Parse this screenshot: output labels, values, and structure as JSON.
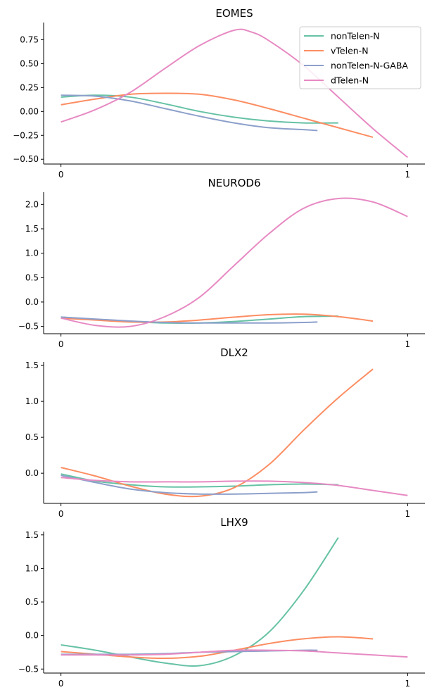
{
  "colors": {
    "nonTelen-N": "#66c2a5",
    "vTelen-N": "#fc8d62",
    "nonTelen-N-GABA": "#8da0cb",
    "dTelen-N": "#e78ac3"
  },
  "legend": {
    "placement": "upper right of first panel",
    "entries": [
      "nonTelen-N",
      "vTelen-N",
      "nonTelen-N-GABA",
      "dTelen-N"
    ]
  },
  "chart_data": [
    {
      "type": "line",
      "title": "EOMES",
      "xlim": [
        -0.05,
        1.05
      ],
      "ylim": [
        -0.55,
        0.93
      ],
      "xticks": [
        0,
        1
      ],
      "xtick_labels": [
        "0",
        "1"
      ],
      "yticks": [
        -0.5,
        -0.25,
        0,
        0.25,
        0.5,
        0.75
      ],
      "ytick_labels": [
        "−0.50",
        "−0.25",
        "0.00",
        "0.25",
        "0.50",
        "0.75"
      ],
      "series": [
        {
          "name": "nonTelen-N",
          "x": [
            0,
            0.1,
            0.2,
            0.3,
            0.4,
            0.5,
            0.6,
            0.7,
            0.8
          ],
          "y": [
            0.15,
            0.17,
            0.15,
            0.08,
            0.0,
            -0.06,
            -0.1,
            -0.12,
            -0.12
          ]
        },
        {
          "name": "vTelen-N",
          "x": [
            0,
            0.1,
            0.2,
            0.3,
            0.4,
            0.5,
            0.6,
            0.7,
            0.8,
            0.9
          ],
          "y": [
            0.07,
            0.13,
            0.18,
            0.19,
            0.18,
            0.12,
            0.03,
            -0.07,
            -0.17,
            -0.27
          ]
        },
        {
          "name": "nonTelen-N-GABA",
          "x": [
            0,
            0.1,
            0.2,
            0.3,
            0.4,
            0.5,
            0.6,
            0.7,
            0.74
          ],
          "y": [
            0.17,
            0.16,
            0.11,
            0.03,
            -0.05,
            -0.12,
            -0.17,
            -0.19,
            -0.2
          ]
        },
        {
          "name": "dTelen-N",
          "x": [
            0,
            0.1,
            0.2,
            0.3,
            0.4,
            0.5,
            0.55,
            0.6,
            0.7,
            0.8,
            0.9,
            1.0
          ],
          "y": [
            -0.11,
            0.02,
            0.2,
            0.45,
            0.69,
            0.85,
            0.83,
            0.74,
            0.48,
            0.15,
            -0.18,
            -0.48
          ]
        }
      ]
    },
    {
      "type": "line",
      "title": "NEUROD6",
      "xlim": [
        -0.05,
        1.05
      ],
      "ylim": [
        -0.65,
        2.25
      ],
      "xticks": [
        0,
        1
      ],
      "xtick_labels": [
        "0",
        "1"
      ],
      "yticks": [
        -0.5,
        0,
        0.5,
        1.0,
        1.5,
        2.0
      ],
      "ytick_labels": [
        "−0.5",
        "0.0",
        "0.5",
        "1.0",
        "1.5",
        "2.0"
      ],
      "series": [
        {
          "name": "nonTelen-N",
          "x": [
            0,
            0.1,
            0.2,
            0.3,
            0.4,
            0.5,
            0.6,
            0.7,
            0.8
          ],
          "y": [
            -0.31,
            -0.36,
            -0.4,
            -0.43,
            -0.43,
            -0.4,
            -0.35,
            -0.3,
            -0.29
          ]
        },
        {
          "name": "vTelen-N",
          "x": [
            0,
            0.1,
            0.2,
            0.3,
            0.4,
            0.5,
            0.6,
            0.7,
            0.8,
            0.9
          ],
          "y": [
            -0.33,
            -0.37,
            -0.41,
            -0.41,
            -0.37,
            -0.31,
            -0.26,
            -0.25,
            -0.3,
            -0.39
          ]
        },
        {
          "name": "nonTelen-N-GABA",
          "x": [
            0,
            0.1,
            0.2,
            0.3,
            0.4,
            0.5,
            0.6,
            0.7,
            0.74
          ],
          "y": [
            -0.31,
            -0.35,
            -0.39,
            -0.42,
            -0.43,
            -0.43,
            -0.43,
            -0.42,
            -0.41
          ]
        },
        {
          "name": "dTelen-N",
          "x": [
            0,
            0.1,
            0.2,
            0.3,
            0.4,
            0.5,
            0.6,
            0.7,
            0.8,
            0.9,
            1.0
          ],
          "y": [
            -0.33,
            -0.48,
            -0.5,
            -0.3,
            0.1,
            0.75,
            1.4,
            1.92,
            2.12,
            2.05,
            1.75
          ]
        }
      ]
    },
    {
      "type": "line",
      "title": "DLX2",
      "xlim": [
        -0.05,
        1.05
      ],
      "ylim": [
        -0.42,
        1.55
      ],
      "xticks": [
        0,
        1
      ],
      "xtick_labels": [
        "0",
        "1"
      ],
      "yticks": [
        0,
        0.5,
        1.0,
        1.5
      ],
      "ytick_labels": [
        "0.0",
        "0.5",
        "1.0",
        "1.5"
      ],
      "series": [
        {
          "name": "nonTelen-N",
          "x": [
            0,
            0.1,
            0.2,
            0.3,
            0.4,
            0.5,
            0.6,
            0.7,
            0.8
          ],
          "y": [
            -0.01,
            -0.11,
            -0.16,
            -0.19,
            -0.19,
            -0.18,
            -0.16,
            -0.15,
            -0.16
          ]
        },
        {
          "name": "vTelen-N",
          "x": [
            0,
            0.1,
            0.2,
            0.3,
            0.4,
            0.5,
            0.6,
            0.7,
            0.8,
            0.9
          ],
          "y": [
            0.08,
            -0.04,
            -0.18,
            -0.29,
            -0.32,
            -0.2,
            0.12,
            0.6,
            1.05,
            1.45
          ]
        },
        {
          "name": "nonTelen-N-GABA",
          "x": [
            0,
            0.1,
            0.2,
            0.3,
            0.4,
            0.5,
            0.6,
            0.7,
            0.74
          ],
          "y": [
            -0.03,
            -0.13,
            -0.22,
            -0.27,
            -0.29,
            -0.29,
            -0.28,
            -0.27,
            -0.26
          ]
        },
        {
          "name": "dTelen-N",
          "x": [
            0,
            0.1,
            0.2,
            0.3,
            0.4,
            0.5,
            0.6,
            0.7,
            0.8,
            0.9,
            1.0
          ],
          "y": [
            -0.06,
            -0.1,
            -0.12,
            -0.12,
            -0.12,
            -0.11,
            -0.11,
            -0.13,
            -0.17,
            -0.24,
            -0.31
          ]
        }
      ]
    },
    {
      "type": "line",
      "title": "LHX9",
      "xlim": [
        -0.05,
        1.05
      ],
      "ylim": [
        -0.56,
        1.55
      ],
      "xticks": [
        0,
        1
      ],
      "xtick_labels": [
        "0",
        "1"
      ],
      "yticks": [
        -0.5,
        0,
        0.5,
        1.0,
        1.5
      ],
      "ytick_labels": [
        "−0.5",
        "0.0",
        "0.5",
        "1.0",
        "1.5"
      ],
      "series": [
        {
          "name": "nonTelen-N",
          "x": [
            0,
            0.1,
            0.2,
            0.3,
            0.4,
            0.5,
            0.6,
            0.7,
            0.8
          ],
          "y": [
            -0.14,
            -0.22,
            -0.32,
            -0.41,
            -0.45,
            -0.3,
            0.05,
            0.67,
            1.46
          ]
        },
        {
          "name": "vTelen-N",
          "x": [
            0,
            0.1,
            0.2,
            0.3,
            0.4,
            0.5,
            0.6,
            0.7,
            0.8,
            0.9
          ],
          "y": [
            -0.24,
            -0.28,
            -0.32,
            -0.34,
            -0.31,
            -0.22,
            -0.12,
            -0.05,
            -0.02,
            -0.05
          ]
        },
        {
          "name": "nonTelen-N-GABA",
          "x": [
            0,
            0.1,
            0.2,
            0.3,
            0.4,
            0.5,
            0.6,
            0.7,
            0.74
          ],
          "y": [
            -0.28,
            -0.28,
            -0.28,
            -0.27,
            -0.25,
            -0.24,
            -0.23,
            -0.22,
            -0.22
          ]
        },
        {
          "name": "dTelen-N",
          "x": [
            0,
            0.1,
            0.2,
            0.3,
            0.4,
            0.5,
            0.6,
            0.7,
            0.8,
            0.9,
            1.0
          ],
          "y": [
            -0.29,
            -0.29,
            -0.29,
            -0.28,
            -0.25,
            -0.22,
            -0.22,
            -0.23,
            -0.26,
            -0.29,
            -0.32
          ]
        }
      ]
    }
  ]
}
